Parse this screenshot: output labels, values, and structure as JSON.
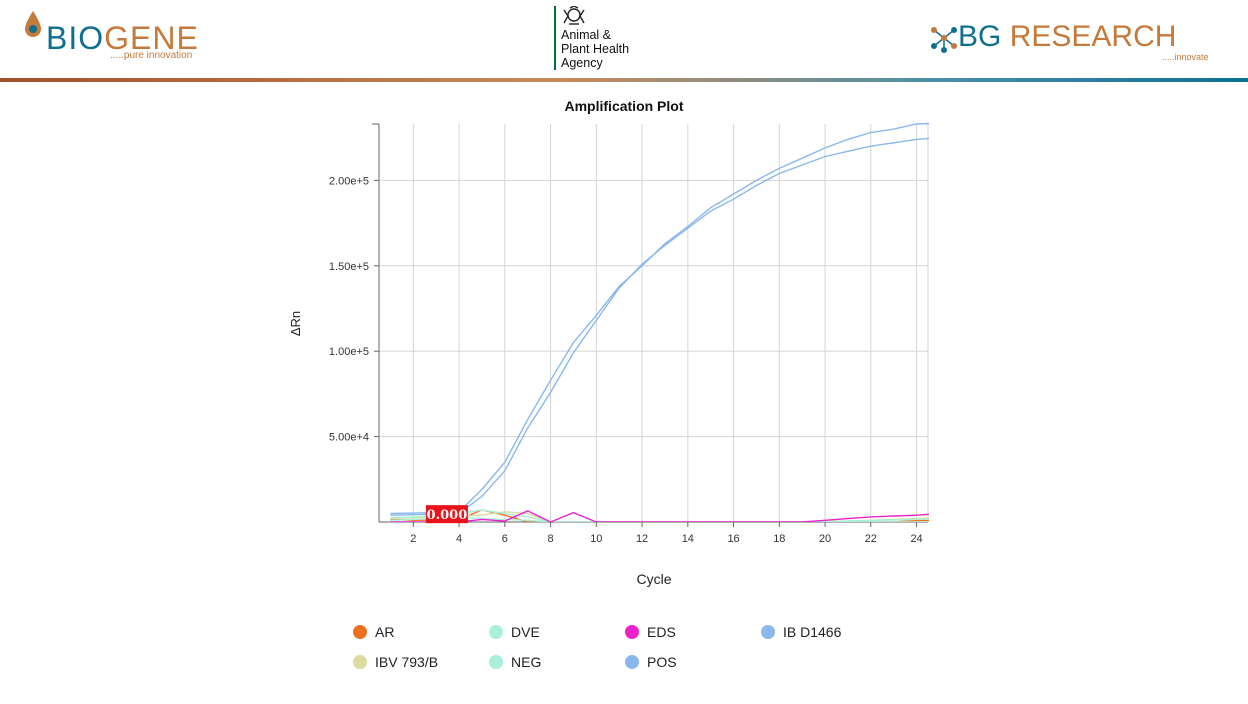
{
  "header": {
    "biogene": {
      "bio": "BIO",
      "gene": "GENE",
      "tagline": ".....pure innovation"
    },
    "apha": {
      "line1": "Animal &",
      "line2": "Plant Health",
      "line3": "Agency"
    },
    "bgresearch": {
      "bg": "BG",
      "research": " RESEARCH",
      "tagline": ".....innovate"
    }
  },
  "colors": {
    "AR": "#f07020",
    "IBV 793/B": "#dcdca0",
    "DVE": "#a8f0dc",
    "NEG": "#a8f0dc",
    "EDS": "#ee22cc",
    "POS": "#8ab8ec",
    "IB D1466": "#8ab8ec"
  },
  "chart_data": {
    "type": "line",
    "title": "Amplification Plot",
    "xlabel": "Cycle",
    "ylabel": "ΔRn",
    "xlim": [
      0.5,
      24.5
    ],
    "ylim": [
      0,
      233000
    ],
    "x_ticks": [
      2,
      4,
      6,
      8,
      10,
      12,
      14,
      16,
      18,
      20,
      22,
      24
    ],
    "y_ticks": [
      50000,
      100000,
      150000,
      200000
    ],
    "y_tick_labels": [
      "5.00e+4",
      "1.00e+5",
      "1.50e+5",
      "2.00e+5"
    ],
    "grid": true,
    "legend_position": "bottom",
    "threshold_label": "0.000",
    "x": [
      1,
      2,
      3,
      4,
      5,
      6,
      7,
      8,
      9,
      10,
      11,
      12,
      13,
      14,
      15,
      16,
      17,
      18,
      19,
      20,
      21,
      22,
      23,
      24,
      25
    ],
    "series": [
      {
        "name": "IB D1466",
        "values": [
          5000,
          5200,
          5500,
          6000,
          19000,
          35000,
          60000,
          83000,
          105000,
          121000,
          138000,
          150000,
          163000,
          173000,
          184000,
          192000,
          200000,
          207000,
          213000,
          219000,
          224000,
          228000,
          230000,
          233000,
          233500
        ]
      },
      {
        "name": "POS",
        "values": [
          4000,
          4300,
          4600,
          5000,
          15000,
          30000,
          55000,
          76000,
          99000,
          118000,
          137000,
          151000,
          162000,
          172000,
          182000,
          189000,
          197000,
          204000,
          209000,
          214000,
          217000,
          220000,
          222000,
          224000,
          225000
        ]
      },
      {
        "name": "AR",
        "values": [
          1500,
          1000,
          1200,
          1500,
          7000,
          4000,
          0,
          0,
          0,
          0,
          0,
          0,
          0,
          0,
          0,
          0,
          0,
          0,
          0,
          0,
          0,
          0,
          0,
          800,
          1000
        ]
      },
      {
        "name": "IBV 793/B",
        "values": [
          2000,
          2500,
          3000,
          3500,
          4000,
          6000,
          5000,
          0,
          0,
          0,
          0,
          0,
          0,
          0,
          0,
          0,
          0,
          0,
          0,
          300,
          600,
          1000,
          1500,
          2000,
          2500
        ]
      },
      {
        "name": "DVE",
        "values": [
          2500,
          3000,
          3500,
          5000,
          7000,
          5000,
          3000,
          0,
          0,
          0,
          0,
          0,
          0,
          0,
          0,
          0,
          0,
          0,
          0,
          200,
          500,
          800,
          1200,
          1600,
          2000
        ]
      },
      {
        "name": "NEG",
        "values": [
          1000,
          1500,
          2000,
          2500,
          2000,
          1500,
          1000,
          0,
          0,
          0,
          0,
          0,
          0,
          0,
          0,
          0,
          0,
          0,
          0,
          0,
          0,
          0,
          0,
          0,
          0
        ]
      },
      {
        "name": "EDS",
        "values": [
          0,
          0,
          0,
          0,
          1500,
          500,
          6500,
          0,
          5500,
          0,
          0,
          0,
          0,
          0,
          0,
          0,
          0,
          0,
          0,
          1000,
          2000,
          3000,
          3500,
          4000,
          5000
        ]
      }
    ],
    "legend": [
      {
        "name": "AR"
      },
      {
        "name": "DVE"
      },
      {
        "name": "EDS"
      },
      {
        "name": "IB D1466"
      },
      {
        "name": "IBV 793/B"
      },
      {
        "name": "NEG"
      },
      {
        "name": "POS"
      }
    ]
  }
}
